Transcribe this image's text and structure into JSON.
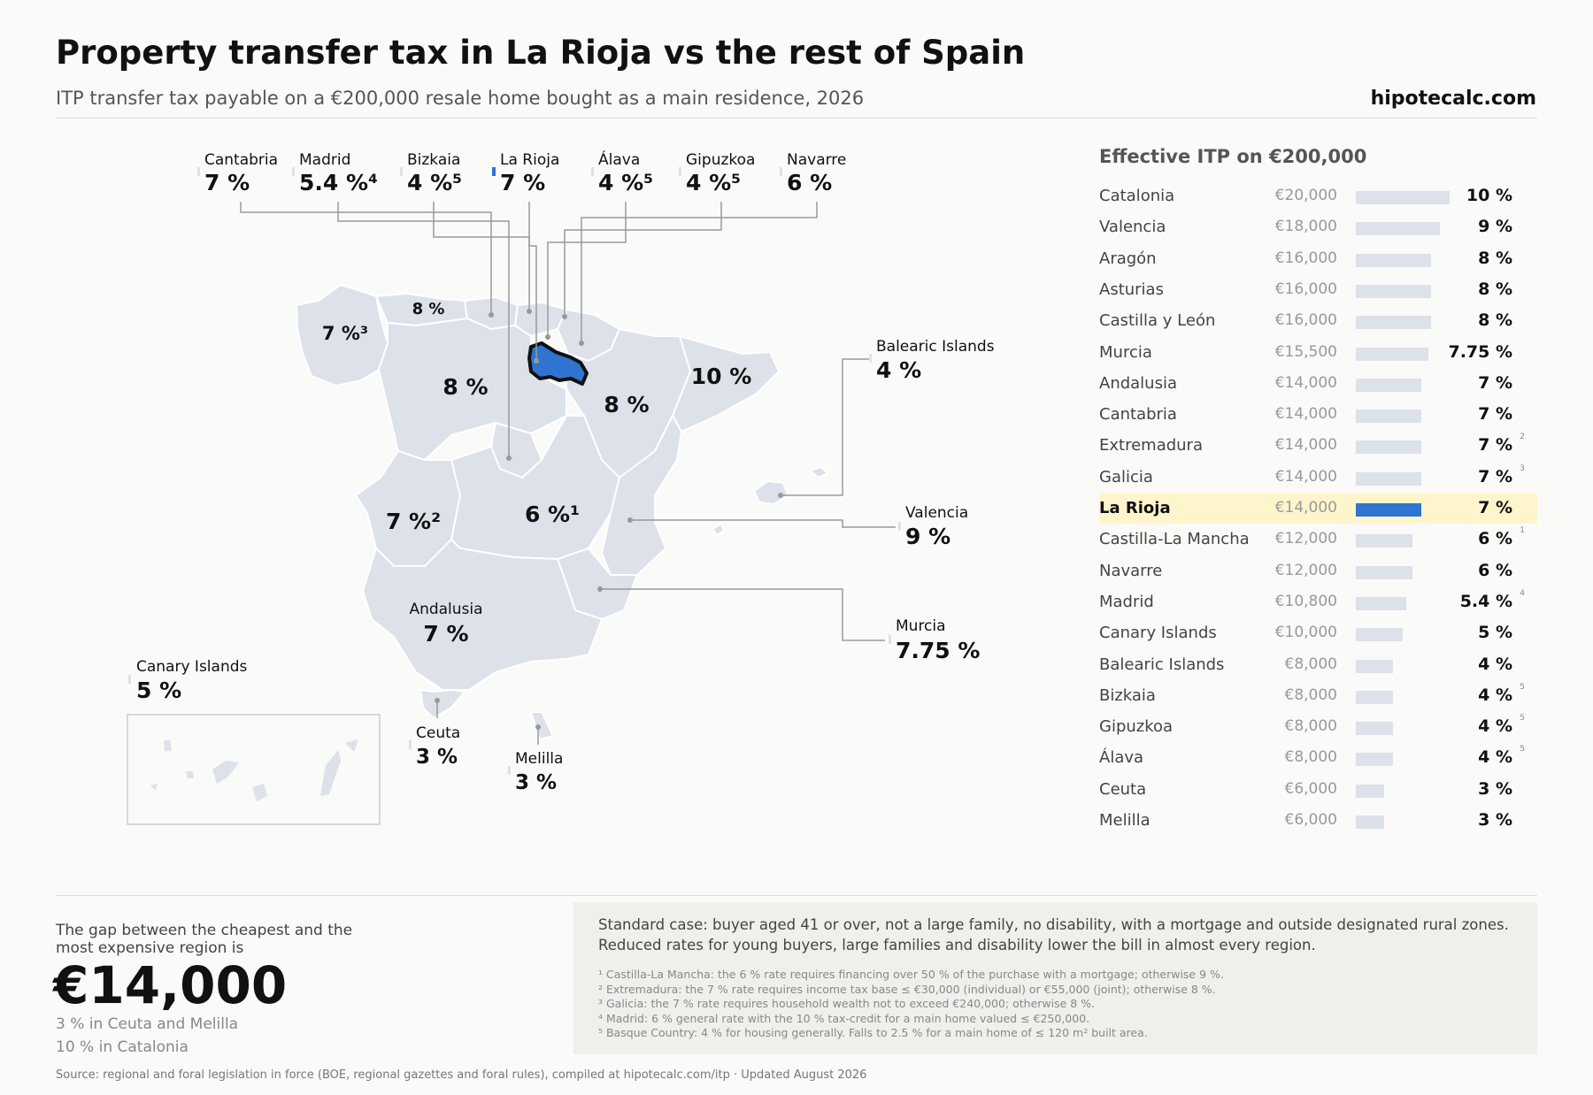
{
  "title": "Property transfer tax in La Rioja vs the rest of Spain",
  "subtitle": "ITP transfer tax payable on a €200,000 resale home bought as a main residence, 2026",
  "brand": "hipotecalc.com",
  "colors": {
    "highlight": "#2e74d0",
    "land": "#dde1e9",
    "highlight_row": "#fff5cc",
    "leader": "#999999"
  },
  "map": {
    "top_callouts": [
      {
        "name": "Cantabria",
        "rate": "7 %"
      },
      {
        "name": "Madrid",
        "rate": "5.4 %⁴"
      },
      {
        "name": "Bizkaia",
        "rate": "4 %⁵"
      },
      {
        "name": "La Rioja",
        "rate": "7 %",
        "highlight": true
      },
      {
        "name": "Álava",
        "rate": "4 %⁵"
      },
      {
        "name": "Gipuzkoa",
        "rate": "4 %⁵"
      },
      {
        "name": "Navarre",
        "rate": "6 %"
      }
    ],
    "side_callouts": [
      {
        "name": "Balearic Islands",
        "rate": "4 %"
      },
      {
        "name": "Valencia",
        "rate": "9 %"
      },
      {
        "name": "Murcia",
        "rate": "7.75 %"
      },
      {
        "name": "Canary Islands",
        "rate": "5 %"
      },
      {
        "name": "Ceuta",
        "rate": "3 %"
      },
      {
        "name": "Melilla",
        "rate": "3 %"
      },
      {
        "name": "Andalusia",
        "rate": "7 %"
      }
    ],
    "inline_labels": [
      {
        "region": "Galicia",
        "text": "7 %³"
      },
      {
        "region": "Asturias",
        "text": "8 %"
      },
      {
        "region": "Castilla y León",
        "text": "8 %"
      },
      {
        "region": "Aragón",
        "text": "8 %"
      },
      {
        "region": "Catalonia",
        "text": "10 %"
      },
      {
        "region": "Extremadura",
        "text": "7 %²"
      },
      {
        "region": "Castilla-La Mancha",
        "text": "6 %¹"
      }
    ]
  },
  "chart_data": {
    "type": "bar",
    "title": "Effective ITP on €200,000",
    "categories": [
      "Catalonia",
      "Valencia",
      "Aragón",
      "Asturias",
      "Castilla y León",
      "Murcia",
      "Andalusia",
      "Cantabria",
      "Extremadura",
      "Galicia",
      "La Rioja",
      "Castilla-La Mancha",
      "Navarre",
      "Madrid",
      "Canary Islands",
      "Balearic Islands",
      "Bizkaia",
      "Gipuzkoa",
      "Álava",
      "Ceuta",
      "Melilla"
    ],
    "amounts": [
      "€20,000",
      "€18,000",
      "€16,000",
      "€16,000",
      "€16,000",
      "€15,500",
      "€14,000",
      "€14,000",
      "€14,000",
      "€14,000",
      "€14,000",
      "€12,000",
      "€12,000",
      "€10,800",
      "€10,000",
      "€8,000",
      "€8,000",
      "€8,000",
      "€8,000",
      "€6,000",
      "€6,000"
    ],
    "values": [
      20000,
      18000,
      16000,
      16000,
      16000,
      15500,
      14000,
      14000,
      14000,
      14000,
      14000,
      12000,
      12000,
      10800,
      10000,
      8000,
      8000,
      8000,
      8000,
      6000,
      6000
    ],
    "rate_labels": [
      "10 %",
      "9 %",
      "8 %",
      "8 %",
      "8 %",
      "7.75 %",
      "7 %",
      "7 %",
      "7 %",
      "7 %",
      "7 %",
      "6 %",
      "6 %",
      "5.4 %",
      "5 %",
      "4 %",
      "4 %",
      "4 %",
      "4 %",
      "3 %",
      "3 %"
    ],
    "footnote_marks": [
      "",
      "",
      "",
      "",
      "",
      "",
      "",
      "",
      "2",
      "3",
      "",
      "1",
      "",
      "4",
      "",
      "",
      "5",
      "5",
      "5",
      "",
      ""
    ],
    "highlight": "La Rioja"
  },
  "gap": {
    "label": "The gap between the cheapest and the most expensive region is",
    "value": "€14,000",
    "min": "3 % in Ceuta and Melilla",
    "max": "10 % in Catalonia"
  },
  "notes": {
    "standard_case": "Standard case: buyer aged 41 or over, not a large family, no disability, with a mortgage and outside designated rural zones. Reduced rates for young buyers, large families and disability lower the bill in almost every region.",
    "footnotes": [
      "¹ Castilla-La Mancha: the 6 % rate requires financing over 50 % of the purchase with a mortgage; otherwise 9 %.",
      "² Extremadura: the 7 % rate requires income tax base ≤ €30,000 (individual) or €55,000 (joint); otherwise 8 %.",
      "³ Galicia: the 7 % rate requires household wealth not to exceed €240,000; otherwise 8 %.",
      "⁴ Madrid: 6 % general rate with the 10 % tax-credit for a main home valued ≤ €250,000.",
      "⁵ Basque Country: 4 % for housing generally. Falls to 2.5 % for a main home of ≤ 120 m² built area."
    ]
  },
  "source": "Source: regional and foral legislation in force (BOE, regional gazettes and foral rules), compiled at hipotecalc.com/itp · Updated August 2026"
}
